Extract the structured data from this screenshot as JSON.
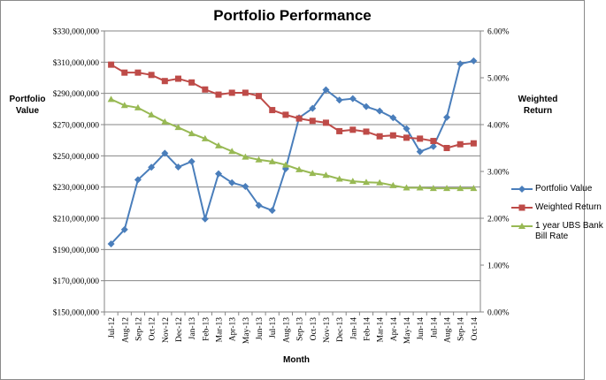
{
  "chart_data": {
    "type": "line",
    "title": "Portfolio Performance",
    "xlabel": "Month",
    "ylabel": "Portfolio Value",
    "y2label": "Weighted Return",
    "categories": [
      "Jul-12",
      "Aug-12",
      "Sep-12",
      "Oct-12",
      "Nov-12",
      "Dec-12",
      "Jan-13",
      "Feb-13",
      "Mar-13",
      "Apr-13",
      "May-13",
      "Jun-13",
      "Jul-13",
      "Aug-13",
      "Sep-13",
      "Oct-13",
      "Nov-13",
      "Dec-13",
      "Jan-14",
      "Feb-14",
      "Mar-14",
      "Apr-14",
      "May-14",
      "Jun-14",
      "Jul-14",
      "Aug-14",
      "Sep-14",
      "Oct-14"
    ],
    "ylim": [
      150000000,
      330000000
    ],
    "y2lim": [
      0,
      6
    ],
    "yticks": [
      "$150,000,000",
      "$170,000,000",
      "$190,000,000",
      "$210,000,000",
      "$230,000,000",
      "$250,000,000",
      "$270,000,000",
      "$290,000,000",
      "$310,000,000",
      "$330,000,000"
    ],
    "y2ticks": [
      "0.00%",
      "1.00%",
      "2.00%",
      "3.00%",
      "4.00%",
      "5.00%",
      "6.00%"
    ],
    "grid": true,
    "legend_position": "right",
    "series": [
      {
        "name": "Portfolio Value",
        "axis": "left",
        "color": "#4a7ebb",
        "marker": "diamond",
        "values": [
          193600000,
          202800000,
          234700000,
          242700000,
          251700000,
          242800000,
          246400000,
          209600000,
          238500000,
          232800000,
          230400000,
          218300000,
          215000000,
          241700000,
          274400000,
          280400000,
          292300000,
          285700000,
          286600000,
          281500000,
          278700000,
          274400000,
          267400000,
          252700000,
          256000000,
          274700000,
          308900000,
          310800000
        ]
      },
      {
        "name": "Weighted Return",
        "axis": "right",
        "color": "#be4b48",
        "marker": "square",
        "values": [
          5.28,
          5.11,
          5.11,
          5.06,
          4.93,
          4.98,
          4.9,
          4.75,
          4.64,
          4.68,
          4.68,
          4.61,
          4.31,
          4.21,
          4.13,
          4.08,
          4.04,
          3.86,
          3.89,
          3.85,
          3.75,
          3.77,
          3.72,
          3.7,
          3.65,
          3.5,
          3.58,
          3.6
        ]
      },
      {
        "name": "1 year UBS Bank Bill Rate",
        "axis": "right",
        "color": "#98b954",
        "marker": "triangle",
        "values": [
          4.54,
          4.41,
          4.36,
          4.21,
          4.06,
          3.94,
          3.81,
          3.7,
          3.55,
          3.43,
          3.31,
          3.25,
          3.21,
          3.14,
          3.04,
          2.96,
          2.92,
          2.84,
          2.79,
          2.77,
          2.76,
          2.7,
          2.65,
          2.65,
          2.64,
          2.64,
          2.64,
          2.64
        ]
      }
    ]
  }
}
